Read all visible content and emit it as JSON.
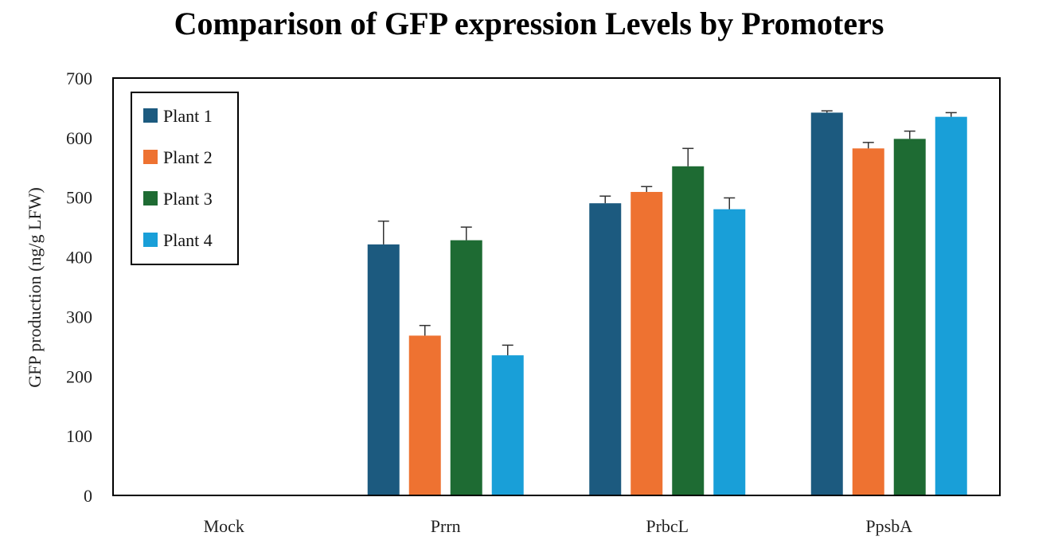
{
  "chart_data": {
    "type": "bar",
    "title": "Comparison of GFP expression Levels by Promoters",
    "xlabel": "",
    "ylabel": "GFP  production (ng/g LFW)",
    "ylim": [
      0,
      700
    ],
    "yticks": [
      0,
      100,
      200,
      300,
      400,
      500,
      600,
      700
    ],
    "categories": [
      "Mock",
      "Prrn",
      "PrbcL",
      "PpsbA"
    ],
    "grid": false,
    "legend_position": "top-left",
    "series": [
      {
        "name": "Plant 1",
        "color": "#1c5a7f",
        "values": [
          0,
          421,
          490,
          642
        ],
        "errors": [
          0,
          39,
          12,
          3
        ]
      },
      {
        "name": "Plant 2",
        "color": "#ee7231",
        "values": [
          0,
          268,
          509,
          582
        ],
        "errors": [
          0,
          17,
          9,
          10
        ]
      },
      {
        "name": "Plant 3",
        "color": "#1e6b33",
        "values": [
          0,
          428,
          552,
          598
        ],
        "errors": [
          0,
          22,
          30,
          13
        ]
      },
      {
        "name": "Plant 4",
        "color": "#199fd8",
        "values": [
          0,
          235,
          480,
          635
        ],
        "errors": [
          0,
          17,
          19,
          7
        ]
      }
    ]
  }
}
